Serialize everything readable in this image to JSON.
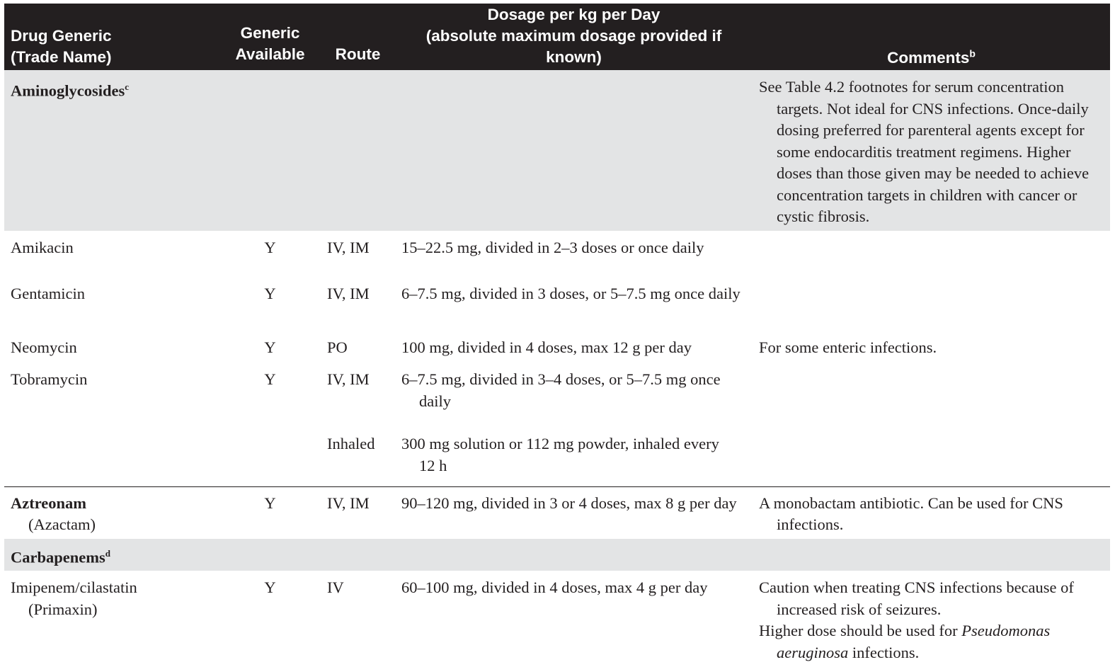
{
  "header": {
    "drug_line1": "Drug Generic",
    "drug_line2": "(Trade Name)",
    "generic_line1": "Generic",
    "generic_line2": "Available",
    "route": "Route",
    "dose_line1": "Dosage per kg per Day",
    "dose_line2": "(absolute maximum dosage provided if",
    "dose_line3": "known)",
    "comments": "Comments",
    "comments_sup": "b"
  },
  "groups": {
    "aminoglycosides": {
      "name": "Aminoglycosides",
      "sup": "c",
      "comment": "See Table 4.2 footnotes for serum concentration targets. Not ideal for CNS infections. Once-daily dosing preferred for parenteral agents except for some endocarditis treatment regimens. Higher doses than those given may be needed to achieve concentration targets in children with cancer or cystic fibrosis."
    },
    "carbapenems": {
      "name": "Carbapenems",
      "sup": "d"
    }
  },
  "rows": {
    "amikacin": {
      "drug": "Amikacin",
      "generic": "Y",
      "route": "IV, IM",
      "dose": "15–22.5 mg, divided in 2–3 doses or once daily",
      "comment": ""
    },
    "gentamicin": {
      "drug": "Gentamicin",
      "generic": "Y",
      "route": "IV, IM",
      "dose": "6–7.5 mg, divided in 3 doses, or 5–7.5 mg once daily",
      "comment": ""
    },
    "neomycin": {
      "drug": "Neomycin",
      "generic": "Y",
      "route": "PO",
      "dose": "100 mg, divided in 4 doses, max 12 g per day",
      "comment": "For some enteric infections."
    },
    "tobramycin": {
      "drug": "Tobramycin",
      "generic": "Y",
      "route": "IV, IM",
      "dose": "6–7.5 mg, divided in 3–4 doses, or 5–7.5 mg once daily",
      "comment": ""
    },
    "tobramycin_inhaled": {
      "drug": "",
      "generic": "",
      "route": "Inhaled",
      "dose": "300 mg solution or 112 mg powder, inhaled every 12 h",
      "comment": ""
    },
    "aztreonam": {
      "drug": "Aztreonam",
      "trade": "(Azactam)",
      "generic": "Y",
      "route": "IV, IM",
      "dose": "90–120 mg, divided in 3 or 4 doses, max 8 g per day",
      "comment": "A monobactam antibiotic. Can be used for CNS infections."
    },
    "imipenem": {
      "drug": "Imipenem/cilastatin",
      "trade": "(Primaxin)",
      "generic": "Y",
      "route": "IV",
      "dose": "60–100 mg, divided in 4 doses, max 4 g per day",
      "comment1": "Caution when treating CNS infections because of increased risk of seizures.",
      "comment2_pre": "Higher dose should be used for ",
      "comment2_italic": "Pseudomonas aeruginosa",
      "comment2_post": " infections."
    }
  }
}
